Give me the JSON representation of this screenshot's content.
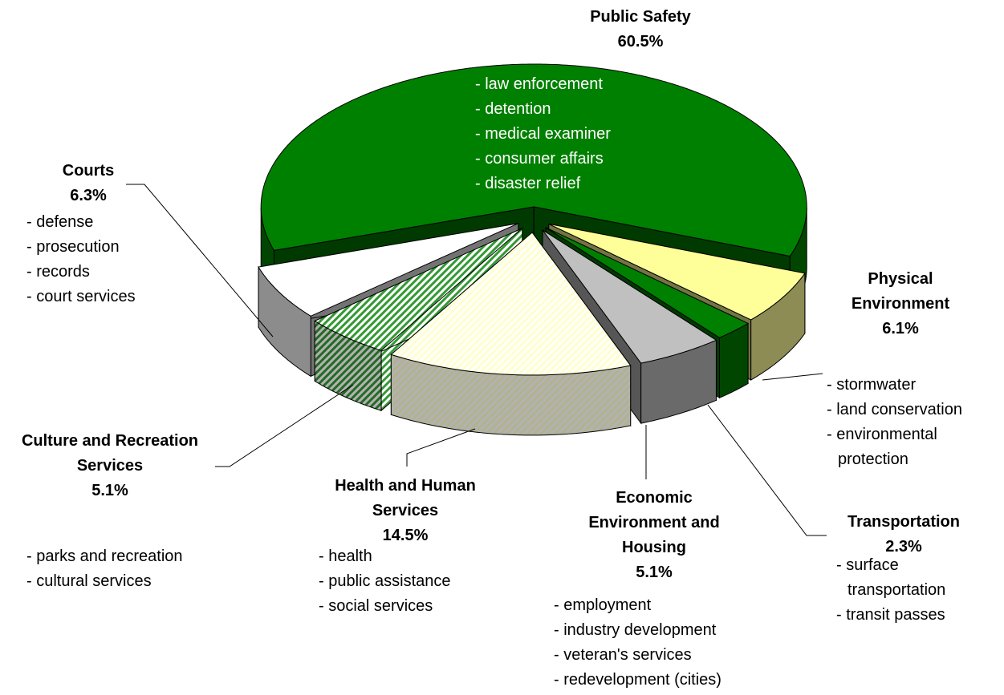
{
  "chart_data": {
    "type": "pie",
    "categories": [
      "Public Safety",
      "Physical Environment",
      "Transportation",
      "Economic Environment and Housing",
      "Health and Human Services",
      "Culture and Recreation Services",
      "Courts"
    ],
    "values": [
      60.5,
      6.1,
      2.3,
      5.1,
      14.5,
      5.1,
      6.3
    ],
    "value_labels": [
      "60.5%",
      "6.1%",
      "2.3%",
      "5.1%",
      "14.5%",
      "5.1%",
      "6.3%"
    ],
    "colors": [
      "#008000",
      "#ffff99",
      "#008000",
      "#c0c0c0",
      "#ffffcc",
      "#339933",
      "#ffffff"
    ],
    "hatched": [
      false,
      false,
      false,
      false,
      true,
      true,
      false
    ],
    "details": [
      [
        "- law enforcement",
        "- detention",
        "- medical examiner",
        "- consumer affairs",
        "- disaster relief"
      ],
      [
        "- stormwater",
        "- land conservation",
        "- environmental protection"
      ],
      [
        "- surface transportation",
        "- transit passes"
      ],
      [
        "- employment",
        "- industry development",
        "- veteran's services",
        "- redevelopment (cities)"
      ],
      [
        "- health",
        "- public assistance",
        "- social services"
      ],
      [
        "- parks and recreation",
        "- cultural services"
      ],
      [
        "- defense",
        "- prosecution",
        "- records",
        "- court services"
      ]
    ]
  }
}
